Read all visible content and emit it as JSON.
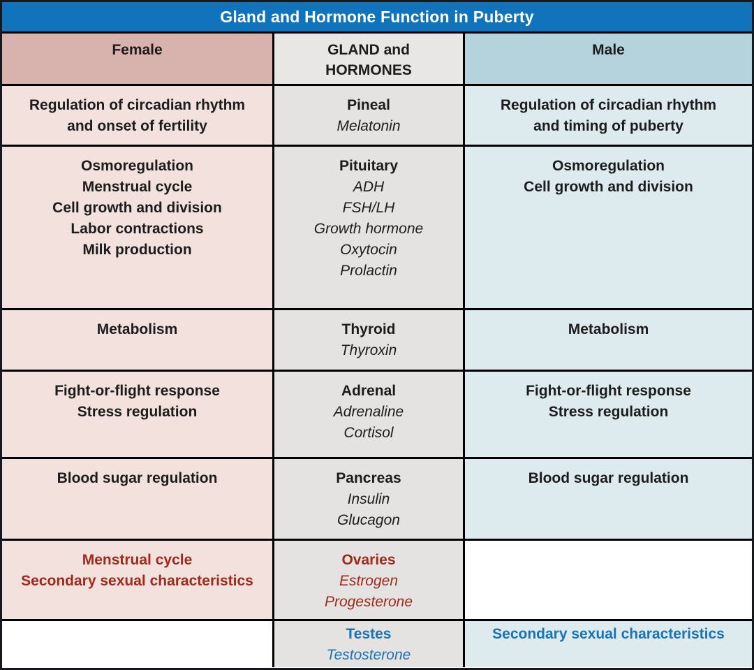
{
  "title": "Gland and Hormone Function in Puberty",
  "colors": {
    "title_bar": "#1173bc",
    "title_text": "#ffffff",
    "female_header": "#d8b2ac",
    "female_cell": "#f2e1dd",
    "gland_header": "#e8e7e5",
    "gland_cell": "#e4e3e1",
    "male_header": "#b4d3dc",
    "male_cell": "#ddebee",
    "blank_cell": "#ffffff",
    "text_dark": "#1c1c1c",
    "text_red": "#9e2a1c",
    "text_blue": "#1a73b2",
    "grid_border": "#000000"
  },
  "header": {
    "female": "Female",
    "gland_line1": "GLAND and",
    "gland_line2": "HORMONES",
    "male": "Male"
  },
  "rows": [
    {
      "female": [
        "Regulation of circadian rhythm",
        "and onset of fertility"
      ],
      "gland": {
        "name": "Pineal",
        "hormones": [
          "Melatonin"
        ]
      },
      "male": [
        "Regulation of circadian rhythm",
        "and timing of puberty"
      ]
    },
    {
      "female": [
        "Osmoregulation",
        "Menstrual cycle",
        "Cell growth and division",
        "Labor contractions",
        "Milk production"
      ],
      "gland": {
        "name": "Pituitary",
        "hormones": [
          "ADH",
          "FSH/LH",
          "Growth hormone",
          "Oxytocin",
          "Prolactin"
        ]
      },
      "male": [
        "Osmoregulation",
        "Cell growth and division"
      ]
    },
    {
      "female": [
        "Metabolism"
      ],
      "gland": {
        "name": "Thyroid",
        "hormones": [
          "Thyroxin"
        ]
      },
      "male": [
        "Metabolism"
      ]
    },
    {
      "female": [
        "Fight-or-flight response",
        "Stress regulation"
      ],
      "gland": {
        "name": "Adrenal",
        "hormones": [
          "Adrenaline",
          "Cortisol"
        ]
      },
      "male": [
        "Fight-or-flight response",
        "Stress regulation"
      ]
    },
    {
      "female": [
        "Blood sugar regulation"
      ],
      "gland": {
        "name": "Pancreas",
        "hormones": [
          "Insulin",
          "Glucagon"
        ]
      },
      "male": [
        "Blood sugar regulation"
      ]
    },
    {
      "female": [
        "Menstrual cycle",
        "Secondary sexual characteristics"
      ],
      "gland": {
        "name": "Ovaries",
        "hormones": [
          "Estrogen",
          "Progesterone"
        ]
      },
      "male": null
    },
    {
      "female": null,
      "gland": {
        "name": "Testes",
        "hormones": [
          "Testosterone"
        ]
      },
      "male": [
        "Secondary sexual characteristics"
      ]
    }
  ],
  "chart_data": {
    "type": "table",
    "title": "Gland and Hormone Function in Puberty",
    "columns": [
      "Female",
      "GLAND and HORMONES",
      "Male"
    ],
    "rows": [
      [
        "Regulation of circadian rhythm and onset of fertility",
        "Pineal — Melatonin",
        "Regulation of circadian rhythm and timing of puberty"
      ],
      [
        "Osmoregulation; Menstrual cycle; Cell growth and division; Labor contractions; Milk production",
        "Pituitary — ADH, FSH/LH, Growth hormone, Oxytocin, Prolactin",
        "Osmoregulation; Cell growth and division"
      ],
      [
        "Metabolism",
        "Thyroid — Thyroxin",
        "Metabolism"
      ],
      [
        "Fight-or-flight response; Stress regulation",
        "Adrenal — Adrenaline, Cortisol",
        "Fight-or-flight response; Stress regulation"
      ],
      [
        "Blood sugar regulation",
        "Pancreas — Insulin, Glucagon",
        "Blood sugar regulation"
      ],
      [
        "Menstrual cycle; Secondary sexual characteristics",
        "Ovaries — Estrogen, Progesterone",
        ""
      ],
      [
        "",
        "Testes — Testosterone",
        "Secondary sexual characteristics"
      ]
    ],
    "legend_position": "none",
    "grid": true
  }
}
